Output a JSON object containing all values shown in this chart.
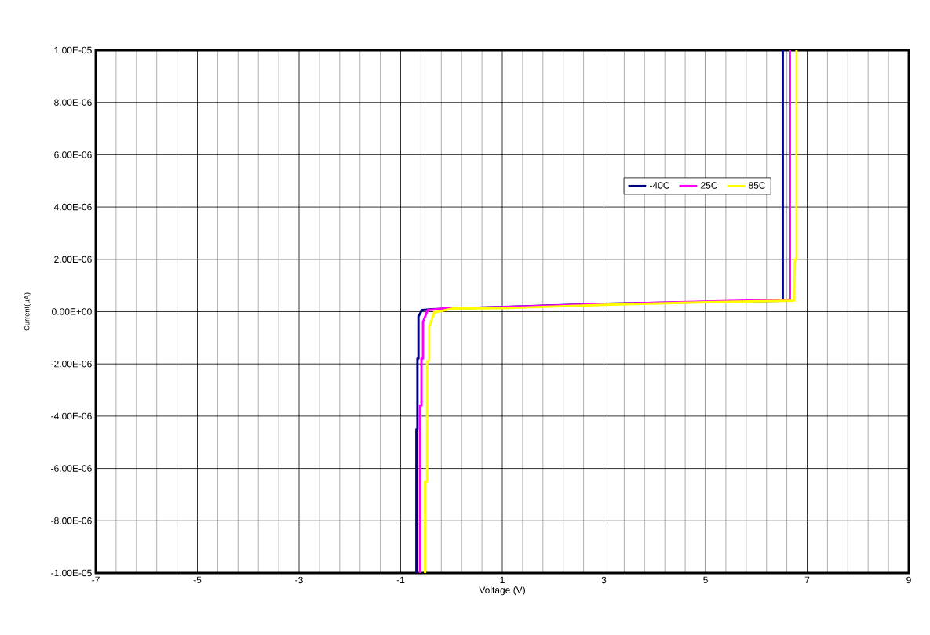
{
  "chart_data": {
    "type": "line",
    "xlabel": "Voltage (V)",
    "ylabel": "Current(µA)",
    "xlim": [
      -7,
      9
    ],
    "xticks": [
      -7,
      -5,
      -3,
      -1,
      1,
      3,
      5,
      7,
      9
    ],
    "ylim": [
      -1e-05,
      1e-05
    ],
    "yticks": [
      {
        "value": -1e-05,
        "label": "-1.00E-05"
      },
      {
        "value": -8e-06,
        "label": "-8.00E-06"
      },
      {
        "value": -6e-06,
        "label": "-6.00E-06"
      },
      {
        "value": -4e-06,
        "label": "-4.00E-06"
      },
      {
        "value": -2e-06,
        "label": "-2.00E-06"
      },
      {
        "value": 0,
        "label": "0.00E+00"
      },
      {
        "value": 2e-06,
        "label": "2.00E-06"
      },
      {
        "value": 4e-06,
        "label": "4.00E-06"
      },
      {
        "value": 6e-06,
        "label": "6.00E-06"
      },
      {
        "value": 8e-06,
        "label": "8.00E-06"
      },
      {
        "value": 1e-05,
        "label": "1.00E-05"
      }
    ],
    "grid": true,
    "legend": "top right",
    "marker": "none",
    "line_style": "solid",
    "series": [
      {
        "name": "-40C",
        "color": "#000080",
        "x": [
          -0.69,
          -0.69,
          -0.67,
          -0.67,
          -0.65,
          -0.65,
          -0.58,
          -0.39,
          0.03,
          3,
          6.52,
          6.52
        ],
        "values": [
          -1e-05,
          -4.5e-06,
          -4.5e-06,
          -1.8e-06,
          -1.8e-06,
          -1.8e-07,
          6e-08,
          9e-08,
          1.2e-07,
          3e-07,
          4.2e-07,
          1e-05
        ]
      },
      {
        "name": "25C",
        "color": "#ff00ff",
        "x": [
          -0.62,
          -0.62,
          -0.59,
          -0.59,
          -0.56,
          -0.56,
          -0.47,
          -0.13,
          1,
          3,
          5,
          6.66,
          6.66
        ],
        "values": [
          -1e-05,
          -3.6e-06,
          -3.6e-06,
          -1.8e-06,
          -1.8e-06,
          -3.9e-07,
          6e-08,
          1.2e-07,
          1.7e-07,
          2.9e-07,
          3.8e-07,
          4.6e-07,
          1e-05
        ]
      },
      {
        "name": "85C",
        "color": "#ffff00",
        "x": [
          -0.52,
          -0.52,
          -0.48,
          -0.48,
          -0.44,
          -0.44,
          -0.34,
          0.03,
          1,
          3,
          5,
          6.74,
          6.76,
          6.79,
          6.79
        ],
        "values": [
          -1e-05,
          -6.5e-06,
          -6.5e-06,
          -1.9e-06,
          -1.9e-06,
          -6e-07,
          -3e-08,
          1.2e-07,
          1.3e-07,
          2.6e-07,
          3.6e-07,
          4.2e-07,
          2e-06,
          2e-06,
          1e-05
        ]
      }
    ]
  }
}
